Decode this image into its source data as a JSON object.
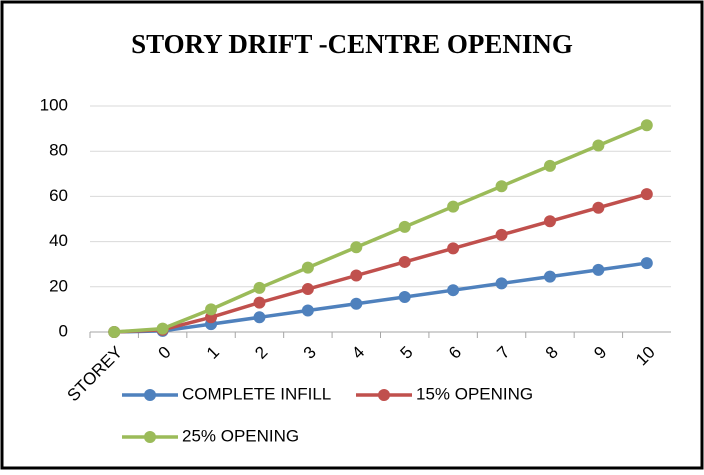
{
  "chart_data": {
    "type": "line",
    "title": "STORY DRIFT -CENTRE OPENING",
    "categories": [
      "STOREY",
      "0",
      "1",
      "2",
      "3",
      "4",
      "5",
      "6",
      "7",
      "8",
      "9",
      "10"
    ],
    "series": [
      {
        "name": "COMPLETE INFILL",
        "color": "#4f81bd",
        "values": [
          0,
          0.5,
          3.5,
          6.5,
          9.5,
          12.5,
          15.5,
          18.5,
          21.5,
          24.5,
          27.5,
          30.5
        ]
      },
      {
        "name": "15% OPENING",
        "color": "#c0504d",
        "values": [
          0,
          1,
          6.5,
          13,
          19,
          25,
          31,
          37,
          43,
          49,
          55,
          61
        ]
      },
      {
        "name": "25% OPENING",
        "color": "#9bbb59",
        "values": [
          0,
          1.5,
          10,
          19.5,
          28.5,
          37.5,
          46.5,
          55.5,
          64.5,
          73.5,
          82.5,
          91.5
        ]
      }
    ],
    "ylim": [
      0,
      100
    ],
    "yticks": [
      0,
      20,
      40,
      60,
      80,
      100
    ],
    "grid": true,
    "legend": "bottom"
  }
}
